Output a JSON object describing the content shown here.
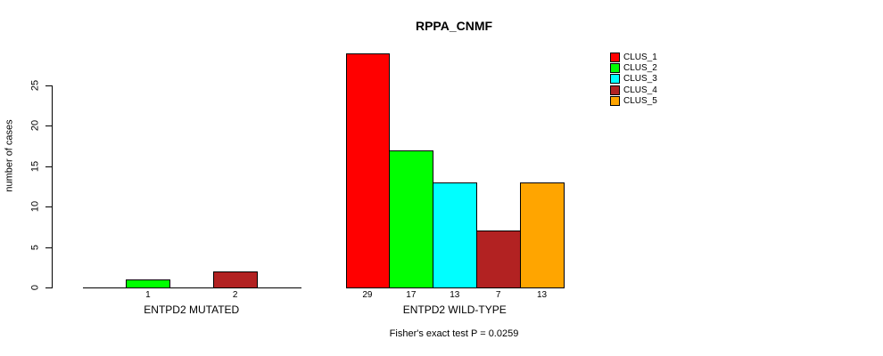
{
  "chart_data": {
    "type": "bar",
    "title": "RPPA_CNMF",
    "ylabel": "number of cases",
    "categories": [
      "ENTPD2 MUTATED",
      "ENTPD2 WILD-TYPE"
    ],
    "series": [
      {
        "name": "CLUS_1",
        "color": "#FF0000",
        "values": [
          0,
          29
        ]
      },
      {
        "name": "CLUS_2",
        "color": "#00FF00",
        "values": [
          1,
          17
        ]
      },
      {
        "name": "CLUS_3",
        "color": "#00FFFF",
        "values": [
          0,
          13
        ]
      },
      {
        "name": "CLUS_4",
        "color": "#B22222",
        "values": [
          2,
          7
        ]
      },
      {
        "name": "CLUS_5",
        "color": "#FFA500",
        "values": [
          0,
          13
        ]
      }
    ],
    "yticks": [
      0,
      5,
      10,
      15,
      20,
      25
    ],
    "ylim": [
      0,
      29
    ],
    "bar_value_labels": "shown under each nonzero bar",
    "grid": false,
    "legend_position": "top-right",
    "annotation": "Fisher's exact test P = 0.0259"
  }
}
